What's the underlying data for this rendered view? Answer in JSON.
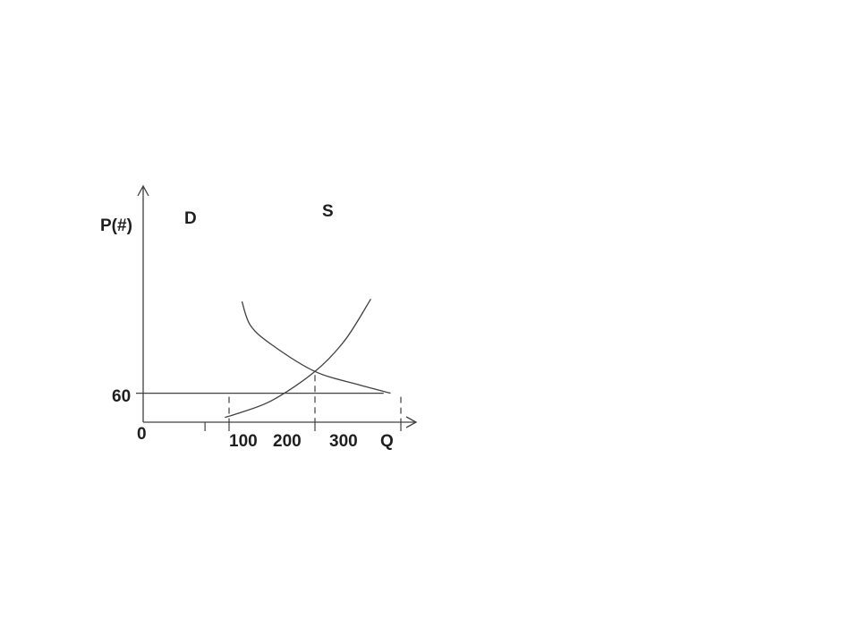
{
  "chart_data": {
    "type": "line",
    "title": "",
    "xlabel": "Q",
    "ylabel": "P(#)",
    "origin_label": "0",
    "x_ticks": [
      {
        "value": 100,
        "label": "100"
      },
      {
        "value": 200,
        "label": "200"
      },
      {
        "value": 300,
        "label": "300"
      }
    ],
    "y_ticks": [
      {
        "value": 60,
        "label": "60"
      }
    ],
    "xlim": [
      0,
      420
    ],
    "ylim": [
      0,
      340
    ],
    "series": [
      {
        "name": "D",
        "points": [
          {
            "x": 115,
            "y": 250
          },
          {
            "x": 125,
            "y": 200
          },
          {
            "x": 150,
            "y": 160
          },
          {
            "x": 200,
            "y": 105
          },
          {
            "x": 250,
            "y": 78
          },
          {
            "x": 288,
            "y": 60
          }
        ]
      },
      {
        "name": "S",
        "points": [
          {
            "x": 95,
            "y": 10
          },
          {
            "x": 110,
            "y": 18
          },
          {
            "x": 150,
            "y": 45
          },
          {
            "x": 200,
            "y": 105
          },
          {
            "x": 235,
            "y": 170
          },
          {
            "x": 265,
            "y": 255
          }
        ]
      }
    ],
    "horizontal_line": {
      "y": 60
    },
    "guides": [
      {
        "x": 100,
        "from_y": 0,
        "to_y": 60
      },
      {
        "x": 200,
        "from_y": 0,
        "to_y": 105
      },
      {
        "x": 300,
        "from_y": 0,
        "to_y": 60
      }
    ],
    "extra_tick": {
      "x": 72
    },
    "grid": false,
    "legend": "none"
  }
}
